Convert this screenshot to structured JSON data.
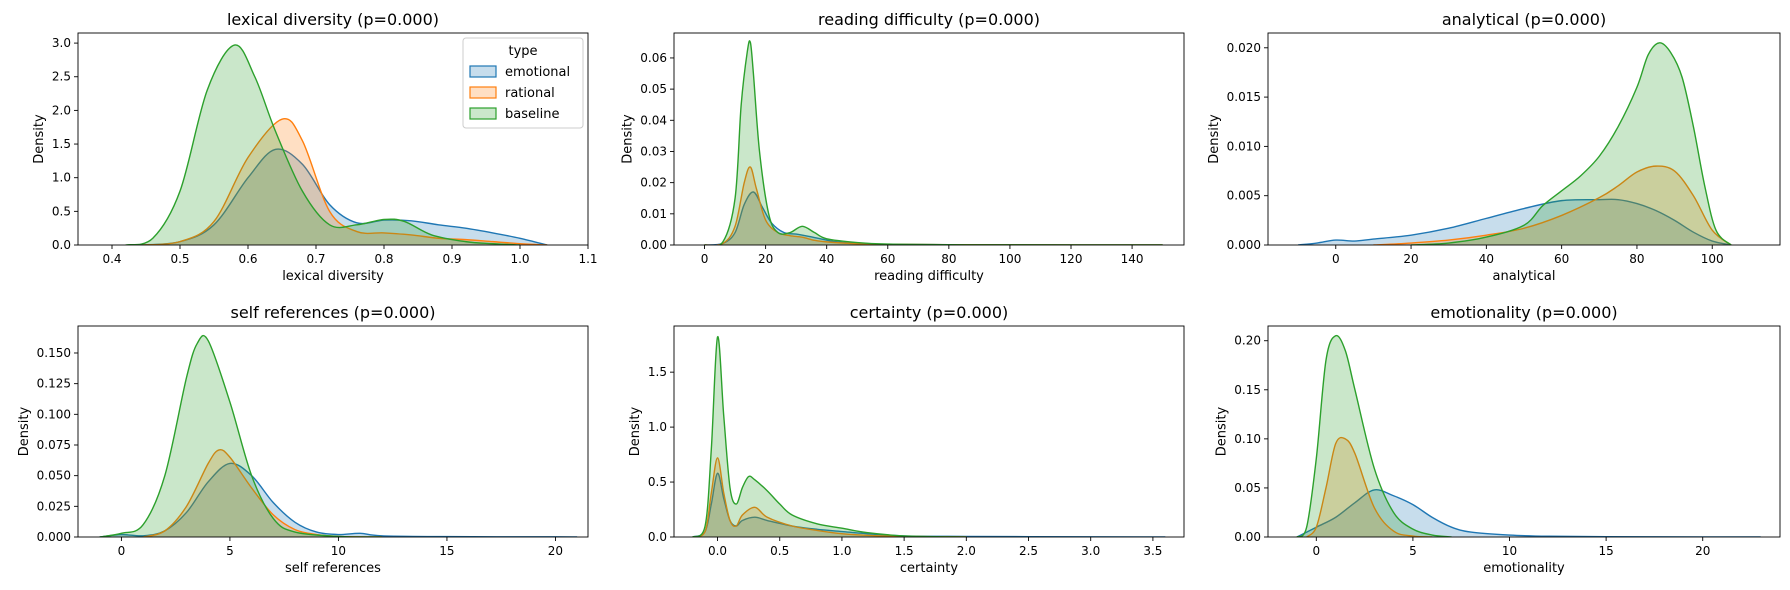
{
  "chart_data": [
    {
      "type": "area",
      "title": "lexical diversity (p=0.000)",
      "xlabel": "lexical diversity",
      "ylabel": "Density",
      "xlim": [
        0.35,
        1.1
      ],
      "ylim": [
        0,
        3.15
      ],
      "xticks": [
        "0.4",
        "0.5",
        "0.6",
        "0.7",
        "0.8",
        "0.9",
        "1.0",
        "1.1"
      ],
      "yticks": [
        "0.0",
        "0.5",
        "1.0",
        "1.5",
        "2.0",
        "2.5",
        "3.0"
      ],
      "legend": {
        "title": "type",
        "position": "top-right",
        "entries": [
          "emotional",
          "rational",
          "baseline"
        ]
      },
      "series": [
        {
          "name": "emotional",
          "x": [
            0.44,
            0.5,
            0.55,
            0.6,
            0.64,
            0.68,
            0.72,
            0.76,
            0.8,
            0.84,
            0.88,
            0.92,
            0.96,
            1.0,
            1.04
          ],
          "y": [
            0,
            0.05,
            0.3,
            1.0,
            1.42,
            1.2,
            0.6,
            0.33,
            0.37,
            0.36,
            0.3,
            0.25,
            0.18,
            0.1,
            0.0
          ]
        },
        {
          "name": "rational",
          "x": [
            0.44,
            0.5,
            0.55,
            0.6,
            0.65,
            0.68,
            0.72,
            0.76,
            0.8,
            0.84,
            0.88,
            0.92,
            0.96,
            1.0,
            1.04
          ],
          "y": [
            0,
            0.05,
            0.35,
            1.3,
            1.87,
            1.55,
            0.5,
            0.2,
            0.18,
            0.15,
            0.1,
            0.08,
            0.05,
            0.02,
            0.0
          ]
        },
        {
          "name": "baseline",
          "x": [
            0.42,
            0.46,
            0.5,
            0.54,
            0.58,
            0.61,
            0.64,
            0.68,
            0.72,
            0.76,
            0.8,
            0.83,
            0.87,
            0.92,
            0.96,
            1.0
          ],
          "y": [
            0,
            0.1,
            0.8,
            2.3,
            2.97,
            2.5,
            1.7,
            0.8,
            0.3,
            0.3,
            0.38,
            0.35,
            0.15,
            0.05,
            0.02,
            0.0
          ]
        }
      ]
    },
    {
      "type": "area",
      "title": "reading difficulty (p=0.000)",
      "xlabel": "reading difficulty",
      "ylabel": "Density",
      "xlim": [
        -10,
        157
      ],
      "ylim": [
        0,
        0.068
      ],
      "xticks": [
        "0",
        "20",
        "40",
        "60",
        "80",
        "100",
        "120",
        "140"
      ],
      "yticks": [
        "0.00",
        "0.01",
        "0.02",
        "0.03",
        "0.04",
        "0.05",
        "0.06"
      ],
      "series": [
        {
          "name": "emotional",
          "x": [
            0,
            6,
            10,
            13,
            16,
            19,
            22,
            26,
            30,
            34,
            38,
            42,
            50,
            60,
            80,
            100,
            150
          ],
          "y": [
            0,
            0.0005,
            0.004,
            0.013,
            0.017,
            0.012,
            0.007,
            0.004,
            0.0035,
            0.0028,
            0.002,
            0.0012,
            0.0005,
            0.0002,
            0.0001,
            5e-05,
            0
          ]
        },
        {
          "name": "rational",
          "x": [
            0,
            6,
            10,
            13,
            15,
            17,
            20,
            24,
            28,
            32,
            36,
            40,
            50,
            60,
            80,
            100,
            150
          ],
          "y": [
            0,
            0.0005,
            0.006,
            0.02,
            0.025,
            0.018,
            0.008,
            0.004,
            0.003,
            0.0025,
            0.0015,
            0.001,
            0.0004,
            0.0002,
            0.0001,
            5e-05,
            0
          ]
        },
        {
          "name": "baseline",
          "x": [
            0,
            6,
            10,
            12,
            14,
            15,
            16,
            18,
            21,
            24,
            28,
            32,
            36,
            40,
            50,
            60,
            80,
            100,
            150
          ],
          "y": [
            0,
            0.001,
            0.015,
            0.045,
            0.062,
            0.065,
            0.055,
            0.03,
            0.01,
            0.004,
            0.004,
            0.006,
            0.004,
            0.002,
            0.0008,
            0.0003,
            0.0001,
            5e-05,
            0
          ]
        }
      ]
    },
    {
      "type": "area",
      "title": "analytical (p=0.000)",
      "xlabel": "analytical",
      "ylabel": "Density",
      "xlim": [
        -18,
        118
      ],
      "ylim": [
        0,
        0.0215
      ],
      "xticks": [
        "0",
        "20",
        "40",
        "60",
        "80",
        "100"
      ],
      "yticks": [
        "0.000",
        "0.005",
        "0.010",
        "0.015",
        "0.020"
      ],
      "series": [
        {
          "name": "emotional",
          "x": [
            -10,
            -5,
            0,
            5,
            10,
            20,
            30,
            40,
            50,
            60,
            70,
            75,
            80,
            85,
            90,
            95,
            100,
            105
          ],
          "y": [
            0,
            0.0002,
            0.0005,
            0.0004,
            0.0006,
            0.001,
            0.0017,
            0.0027,
            0.0037,
            0.0045,
            0.0046,
            0.0046,
            0.0042,
            0.0035,
            0.0025,
            0.0013,
            0.0004,
            0
          ]
        },
        {
          "name": "rational",
          "x": [
            10,
            20,
            30,
            40,
            50,
            60,
            70,
            75,
            80,
            85,
            90,
            95,
            100,
            105
          ],
          "y": [
            0,
            0.0002,
            0.0005,
            0.001,
            0.0017,
            0.003,
            0.0048,
            0.006,
            0.0074,
            0.008,
            0.0075,
            0.005,
            0.0015,
            0
          ]
        },
        {
          "name": "baseline",
          "x": [
            20,
            30,
            40,
            50,
            55,
            60,
            65,
            70,
            75,
            80,
            83,
            86,
            89,
            92,
            95,
            98,
            101,
            105
          ],
          "y": [
            0,
            0.0002,
            0.0008,
            0.002,
            0.004,
            0.0055,
            0.007,
            0.009,
            0.012,
            0.016,
            0.0193,
            0.0205,
            0.0195,
            0.017,
            0.012,
            0.006,
            0.0015,
            0
          ]
        }
      ]
    },
    {
      "type": "area",
      "title": "self references (p=0.000)",
      "xlabel": "self references",
      "ylabel": "Density",
      "xlim": [
        -2,
        21.5
      ],
      "ylim": [
        0,
        0.172
      ],
      "xticks": [
        "0",
        "5",
        "10",
        "15",
        "20"
      ],
      "yticks": [
        "0.000",
        "0.025",
        "0.050",
        "0.075",
        "0.100",
        "0.125",
        "0.150"
      ],
      "series": [
        {
          "name": "emotional",
          "x": [
            -1,
            0,
            1,
            2,
            3,
            4,
            5,
            6,
            7,
            8,
            9,
            10,
            11,
            12,
            15,
            20,
            21
          ],
          "y": [
            0,
            0.002,
            0.001,
            0.005,
            0.02,
            0.045,
            0.06,
            0.05,
            0.028,
            0.012,
            0.004,
            0.002,
            0.003,
            0.001,
            0.0003,
            0.0001,
            0
          ]
        },
        {
          "name": "rational",
          "x": [
            1,
            2,
            3,
            4,
            4.5,
            5,
            6,
            7,
            8,
            9,
            10,
            12
          ],
          "y": [
            0,
            0.005,
            0.025,
            0.06,
            0.071,
            0.065,
            0.04,
            0.018,
            0.006,
            0.002,
            0.0005,
            0
          ]
        },
        {
          "name": "baseline",
          "x": [
            -1,
            0,
            1,
            2,
            3,
            3.5,
            4,
            5,
            6,
            7,
            8,
            10,
            12
          ],
          "y": [
            0,
            0.003,
            0.01,
            0.05,
            0.13,
            0.158,
            0.16,
            0.11,
            0.05,
            0.015,
            0.004,
            0.0005,
            0
          ]
        }
      ]
    },
    {
      "type": "area",
      "title": "certainty (p=0.000)",
      "xlabel": "certainty",
      "ylabel": "Density",
      "xlim": [
        -0.35,
        3.75
      ],
      "ylim": [
        0,
        1.92
      ],
      "xticks": [
        "0.0",
        "0.5",
        "1.0",
        "1.5",
        "2.0",
        "2.5",
        "3.0",
        "3.5"
      ],
      "yticks": [
        "0.0",
        "0.5",
        "1.0",
        "1.5"
      ],
      "series": [
        {
          "name": "emotional",
          "x": [
            -0.2,
            -0.1,
            -0.05,
            0,
            0.05,
            0.1,
            0.15,
            0.2,
            0.3,
            0.4,
            0.6,
            0.8,
            1.0,
            1.2,
            1.5,
            2.0,
            3.0,
            3.6
          ],
          "y": [
            0,
            0.05,
            0.3,
            0.58,
            0.35,
            0.15,
            0.1,
            0.15,
            0.18,
            0.15,
            0.1,
            0.07,
            0.05,
            0.03,
            0.01,
            0.005,
            0.002,
            0
          ]
        },
        {
          "name": "rational",
          "x": [
            -0.2,
            -0.1,
            -0.05,
            0,
            0.05,
            0.1,
            0.15,
            0.2,
            0.3,
            0.4,
            0.6,
            0.8,
            1.0,
            1.2,
            1.5,
            2.0
          ],
          "y": [
            0,
            0.05,
            0.4,
            0.72,
            0.4,
            0.15,
            0.1,
            0.2,
            0.27,
            0.18,
            0.1,
            0.06,
            0.03,
            0.015,
            0.005,
            0
          ]
        },
        {
          "name": "baseline",
          "x": [
            -0.2,
            -0.1,
            -0.05,
            0,
            0.05,
            0.1,
            0.15,
            0.2,
            0.25,
            0.3,
            0.4,
            0.5,
            0.6,
            0.8,
            1.0,
            1.2,
            1.5,
            2.0
          ],
          "y": [
            0,
            0.1,
            0.8,
            1.82,
            1.1,
            0.45,
            0.3,
            0.45,
            0.55,
            0.52,
            0.42,
            0.3,
            0.2,
            0.12,
            0.08,
            0.04,
            0.01,
            0
          ]
        }
      ]
    },
    {
      "type": "area",
      "title": "emotionality (p=0.000)",
      "xlabel": "emotionality",
      "ylabel": "Density",
      "xlim": [
        -2.5,
        24
      ],
      "ylim": [
        0,
        0.215
      ],
      "xticks": [
        "0",
        "5",
        "10",
        "15",
        "20"
      ],
      "yticks": [
        "0.00",
        "0.05",
        "0.10",
        "0.15",
        "0.20"
      ],
      "series": [
        {
          "name": "emotional",
          "x": [
            -1,
            0,
            1,
            2,
            3,
            4,
            5,
            6,
            7,
            8,
            10,
            12,
            15,
            20,
            23
          ],
          "y": [
            0,
            0.01,
            0.02,
            0.035,
            0.048,
            0.042,
            0.033,
            0.02,
            0.01,
            0.005,
            0.002,
            0.0008,
            0.0003,
            0.0001,
            0
          ]
        },
        {
          "name": "rational",
          "x": [
            -0.5,
            0,
            0.5,
            1,
            1.5,
            2,
            3,
            4,
            5,
            6
          ],
          "y": [
            0,
            0.01,
            0.05,
            0.095,
            0.1,
            0.085,
            0.03,
            0.006,
            0.001,
            0
          ]
        },
        {
          "name": "baseline",
          "x": [
            -1,
            -0.5,
            0,
            0.5,
            1,
            1.5,
            2,
            3,
            4,
            5,
            6,
            7
          ],
          "y": [
            0,
            0.01,
            0.08,
            0.18,
            0.205,
            0.19,
            0.15,
            0.07,
            0.025,
            0.008,
            0.002,
            0
          ]
        }
      ]
    }
  ],
  "colors": {
    "emotional": "#1f77b4",
    "rational": "#ff7f0e",
    "baseline": "#2ca02c"
  }
}
